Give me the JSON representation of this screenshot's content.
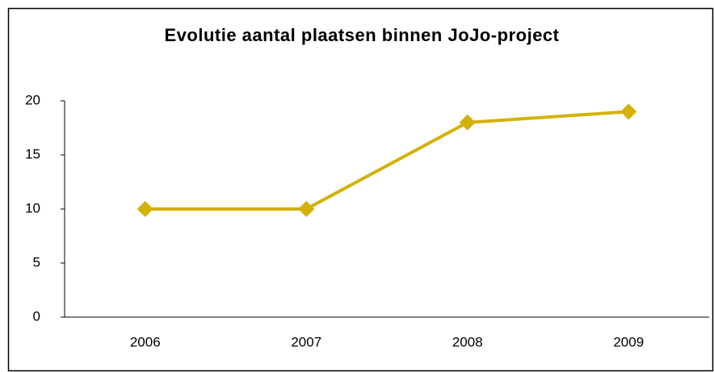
{
  "chart_data": {
    "type": "line",
    "title": "Evolutie aantal plaatsen binnen JoJo-project",
    "categories": [
      "2006",
      "2007",
      "2008",
      "2009"
    ],
    "values": [
      10,
      10,
      18,
      19
    ],
    "color": "#d4b106",
    "ylim": [
      0,
      20
    ],
    "yticks": [
      0,
      5,
      10,
      15,
      20
    ],
    "grid": false
  }
}
